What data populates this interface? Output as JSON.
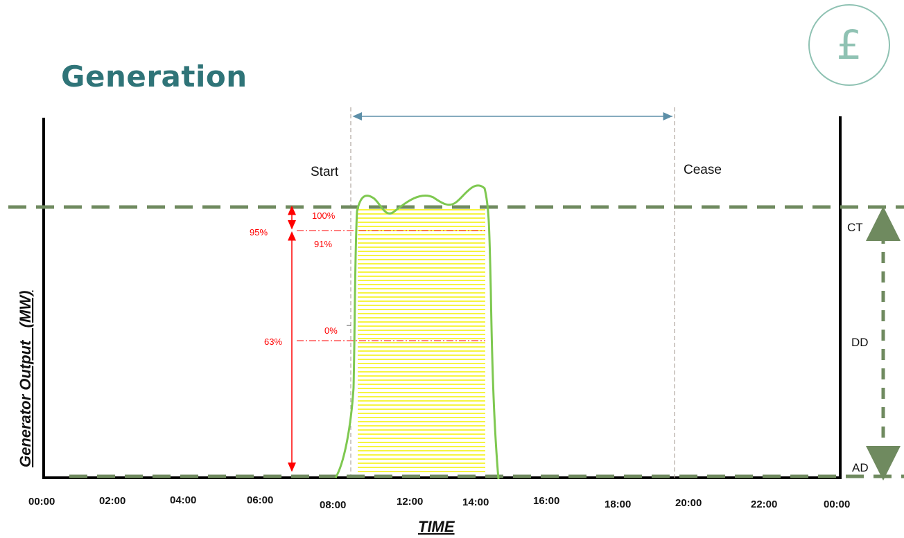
{
  "title": "Generation",
  "currency_icon": "pound-sign-icon",
  "currency_glyph": "£",
  "labels": {
    "start": "Start",
    "cease": "Cease",
    "y_axis": "Generator Output   (MW)",
    "x_axis": "TIME"
  },
  "time_ticks": [
    "00:00",
    "02:00",
    "04:00",
    "06:00",
    "08:00",
    "12:00",
    "14:00",
    "16:00",
    "18:00",
    "20:00",
    "22:00",
    "00:00"
  ],
  "levels": {
    "ct": "CT",
    "dd": "DD",
    "ad": "AD"
  },
  "percent_labels": {
    "p100": "100%",
    "p95": "95%",
    "p91": "91%",
    "p0": "0%",
    "p63": "63%"
  },
  "colors": {
    "title": "#2f7478",
    "level_line": "#6f8a5f",
    "output_curve": "#7ec850",
    "fill_hatch": "#f4f000",
    "annotation": "#ff0000",
    "window_arrow": "#5d8fa8",
    "icon": "#8fc2b3"
  }
}
